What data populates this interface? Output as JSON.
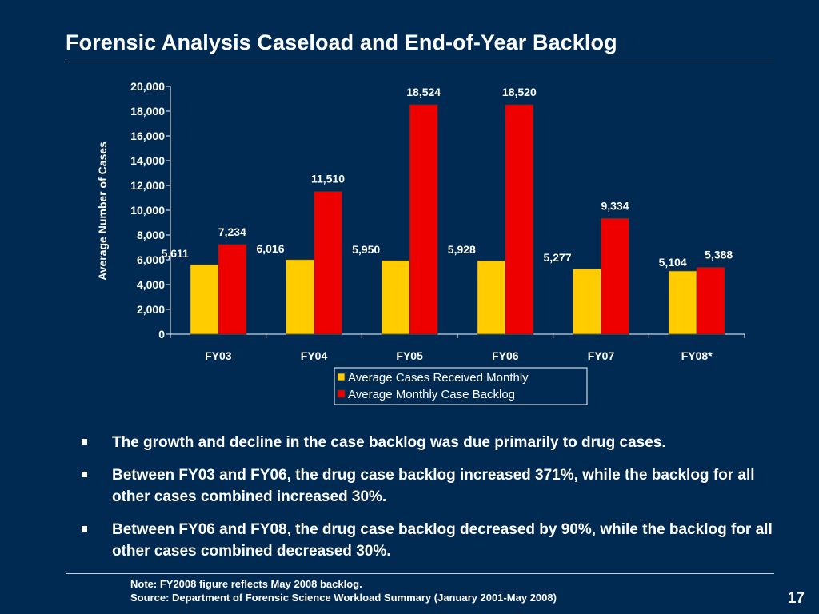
{
  "slide": {
    "title": "Forensic Analysis Caseload and End-of-Year Backlog",
    "bullets": [
      "The growth and decline in the case backlog was due primarily to drug cases.",
      "Between FY03 and FY06, the drug case backlog increased 371%, while the backlog for all other cases combined increased 30%.",
      "Between FY06 and FY08, the drug case backlog decreased by 90%, while the backlog for all other cases combined decreased 30%."
    ],
    "note": "Note:  FY2008 figure reflects May 2008 backlog.",
    "source": "Source:  Department of Forensic Science Workload Summary (January 2001-May 2008)",
    "page_number": "17"
  },
  "chart_data": {
    "type": "bar",
    "title": "",
    "xlabel": "",
    "ylabel": "Average Number of Cases",
    "categories": [
      "FY03",
      "FY04",
      "FY05",
      "FY06",
      "FY07",
      "FY08*"
    ],
    "ylim": [
      0,
      20000
    ],
    "yticks": [
      0,
      2000,
      4000,
      6000,
      8000,
      10000,
      12000,
      14000,
      16000,
      18000,
      20000
    ],
    "ytick_labels": [
      "0",
      "2,000",
      "4,000",
      "6,000",
      "8,000",
      "10,000",
      "12,000",
      "14,000",
      "16,000",
      "18,000",
      "20,000"
    ],
    "grid": false,
    "legend_position": "bottom",
    "series": [
      {
        "name": "Average Cases Received Monthly",
        "color": "#ffcc00",
        "values": [
          5611,
          6016,
          5950,
          5928,
          5277,
          5104
        ],
        "labels": [
          "5,611",
          "6,016",
          "5,950",
          "5,928",
          "5,277",
          "5,104"
        ]
      },
      {
        "name": "Average Monthly Case Backlog",
        "color": "#ee0000",
        "values": [
          7234,
          11510,
          18524,
          18520,
          9334,
          5388
        ],
        "labels": [
          "7,234",
          "11,510",
          "18,524",
          "18,520",
          "9,334",
          "5,388"
        ]
      }
    ]
  }
}
